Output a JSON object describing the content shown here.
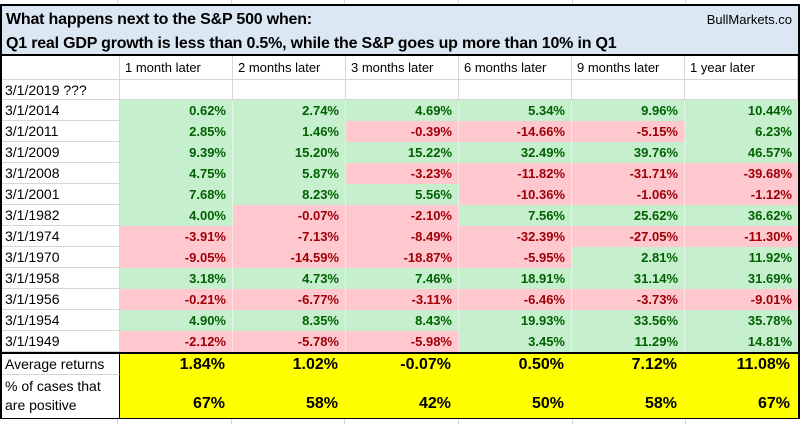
{
  "header": {
    "title_line1": "What happens next to the S&P 500 when:",
    "title_line2": "Q1 real GDP growth is less than 0.5%, while the S&P goes up more than 10% in Q1",
    "brand": "BullMarkets.co"
  },
  "chart_data": {
    "type": "table",
    "title": "What happens next to the S&P 500 when: Q1 real GDP growth is less than 0.5%, while the S&P goes up more than 10% in Q1",
    "columns": [
      "1 month later",
      "2 months later",
      "3 months later",
      "6 months later",
      "9 months later",
      "1 year later"
    ],
    "pending_row": {
      "label": "3/1/2019 ???"
    },
    "rows": [
      {
        "label": "3/1/2014",
        "values": [
          0.62,
          2.74,
          4.69,
          5.34,
          9.96,
          10.44
        ]
      },
      {
        "label": "3/1/2011",
        "values": [
          2.85,
          1.46,
          -0.39,
          -14.66,
          -5.15,
          6.23
        ]
      },
      {
        "label": "3/1/2009",
        "values": [
          9.39,
          15.2,
          15.22,
          32.49,
          39.76,
          46.57
        ]
      },
      {
        "label": "3/1/2008",
        "values": [
          4.75,
          5.87,
          -3.23,
          -11.82,
          -31.71,
          -39.68
        ]
      },
      {
        "label": "3/1/2001",
        "values": [
          7.68,
          8.23,
          5.56,
          -10.36,
          -1.06,
          -1.12
        ]
      },
      {
        "label": "3/1/1982",
        "values": [
          4.0,
          -0.07,
          -2.1,
          7.56,
          25.62,
          36.62
        ]
      },
      {
        "label": "3/1/1974",
        "values": [
          -3.91,
          -7.13,
          -8.49,
          -32.39,
          -27.05,
          -11.3
        ]
      },
      {
        "label": "3/1/1970",
        "values": [
          -9.05,
          -14.59,
          -18.87,
          -5.95,
          2.81,
          11.92
        ]
      },
      {
        "label": "3/1/1958",
        "values": [
          3.18,
          4.73,
          7.46,
          18.91,
          31.14,
          31.69
        ]
      },
      {
        "label": "3/1/1956",
        "values": [
          -0.21,
          -6.77,
          -3.11,
          -6.46,
          -3.73,
          -9.01
        ]
      },
      {
        "label": "3/1/1954",
        "values": [
          4.9,
          8.35,
          8.43,
          19.93,
          33.56,
          35.78
        ]
      },
      {
        "label": "3/1/1949",
        "values": [
          -2.12,
          -5.78,
          -5.98,
          3.45,
          11.29,
          14.81
        ]
      }
    ],
    "summary": {
      "average_label": "Average returns",
      "average_returns": [
        1.84,
        1.02,
        -0.07,
        0.5,
        7.12,
        11.08
      ],
      "percent_positive_label_line1": "% of cases that",
      "percent_positive_label_line2": "are positive",
      "percent_positive": [
        67,
        58,
        42,
        50,
        58,
        67
      ]
    },
    "value_unit": "%"
  },
  "colors": {
    "positive_bg": "#C6EFCE",
    "positive_text": "#006100",
    "negative_bg": "#FFC7CE",
    "negative_text": "#9C0006",
    "summary_bg": "#FFFF00",
    "header_bg": "#DBE8F4",
    "grid_line": "#D6D6D6"
  }
}
